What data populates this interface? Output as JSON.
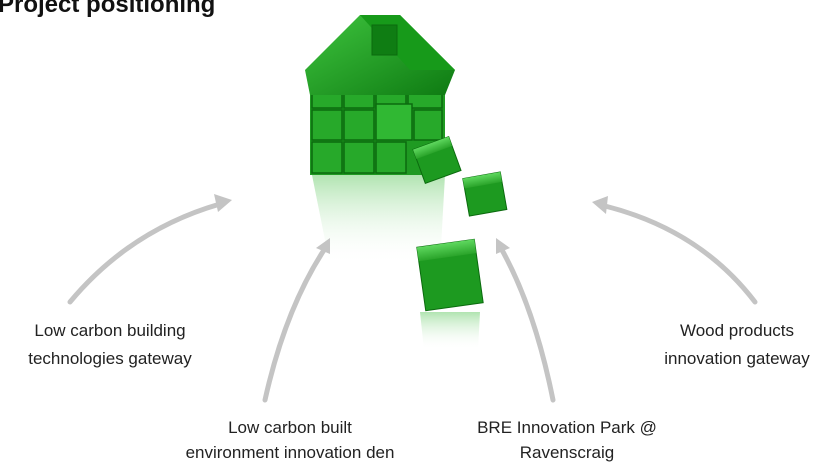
{
  "title": "Project positioning",
  "labels": [
    [
      "Low carbon building",
      "technologies gateway"
    ],
    [
      "Low carbon built",
      "environment innovation den"
    ],
    [
      "BRE Innovation Park @",
      "Ravenscraig"
    ],
    [
      "Wood products",
      "innovation gateway"
    ]
  ]
}
